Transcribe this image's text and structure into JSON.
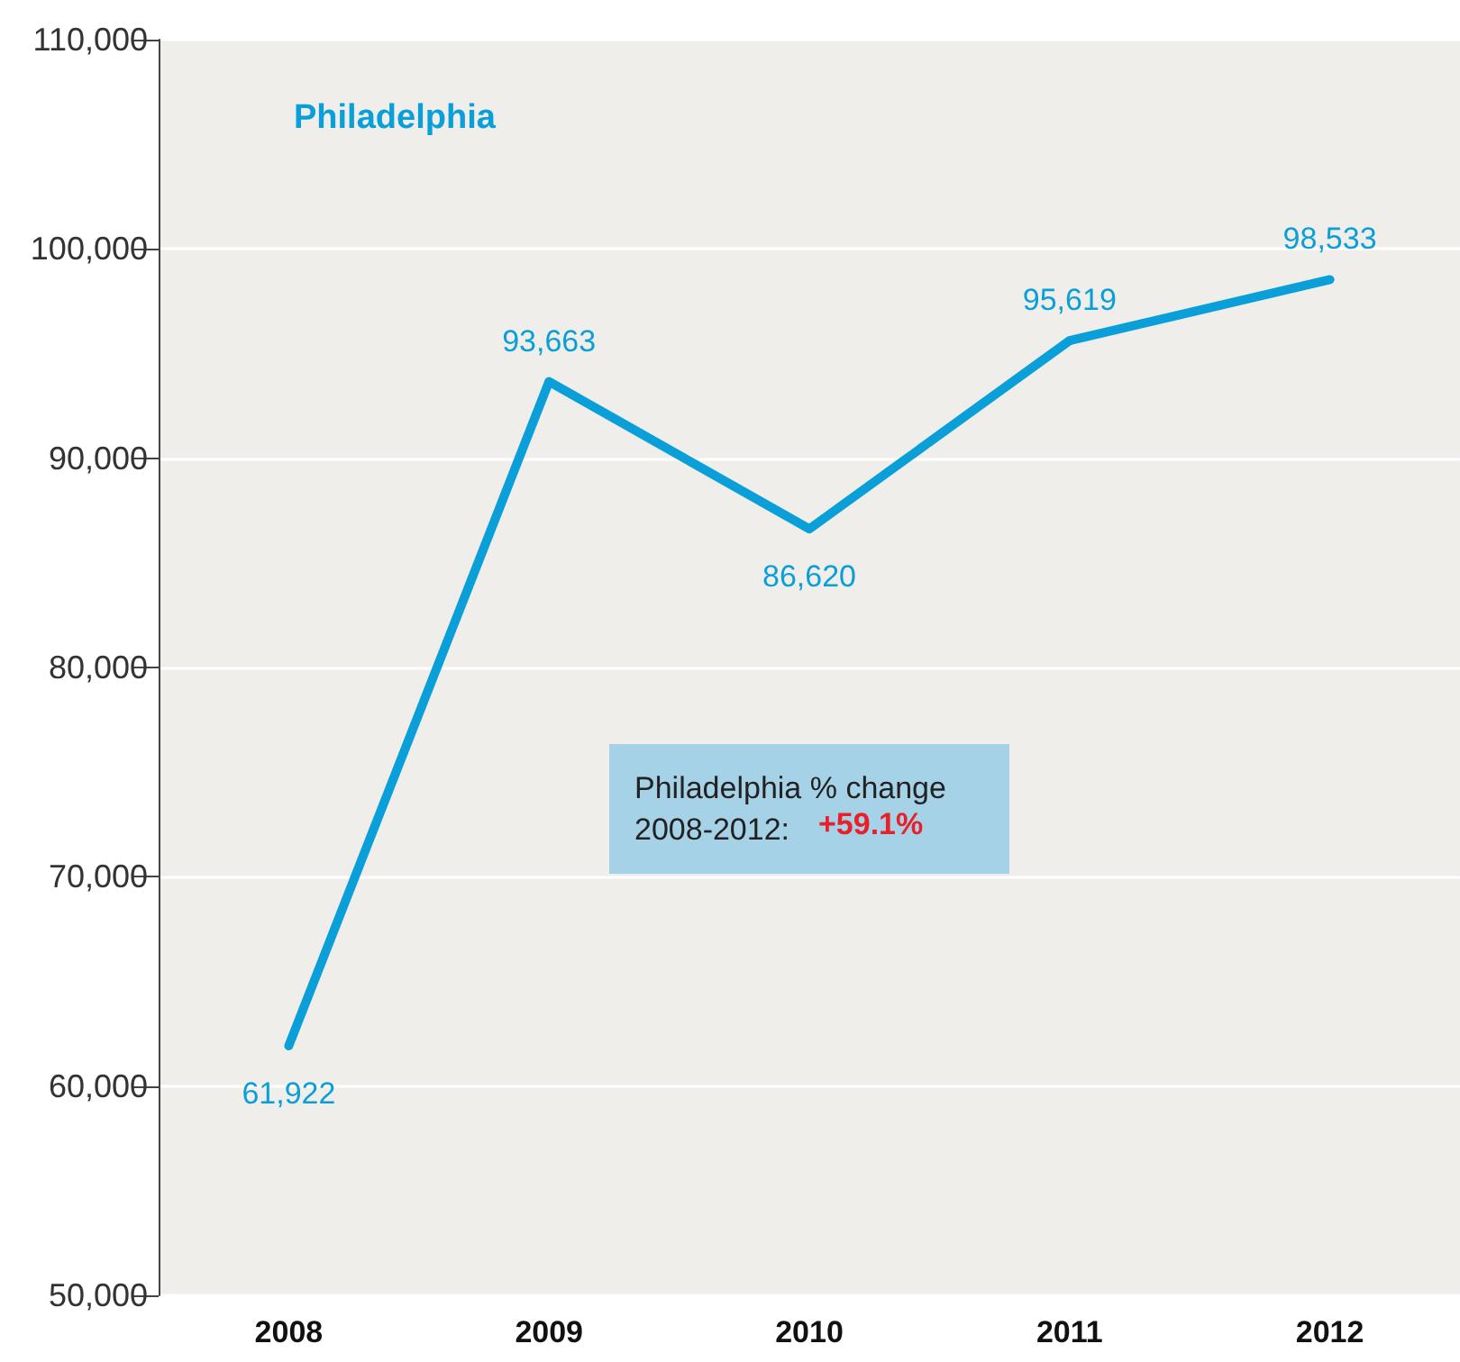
{
  "chart_data": {
    "type": "line",
    "title": "Philadelphia",
    "categories": [
      "2008",
      "2009",
      "2010",
      "2011",
      "2012"
    ],
    "series": [
      {
        "color": "#0a9fd8",
        "values": [
          61922,
          93663,
          86620,
          95619,
          98533
        ],
        "value_labels": [
          "61,922",
          "93,663",
          "86,620",
          "95,619",
          "98,533"
        ]
      }
    ],
    "ylim": [
      50000,
      110000
    ],
    "yticks": [
      {
        "value": 50000,
        "label": "50,000"
      },
      {
        "value": 60000,
        "label": "60,000"
      },
      {
        "value": 70000,
        "label": "70,000"
      },
      {
        "value": 80000,
        "label": "80,000"
      },
      {
        "value": 90000,
        "label": "90,000"
      },
      {
        "value": 100000,
        "label": "100,000"
      },
      {
        "value": 110000,
        "label": "110,000"
      }
    ],
    "grid": "y",
    "marker": "none",
    "line_style": "solid",
    "annotations": [
      "Philadelphia % change\n2008-2012:",
      "+59.1%"
    ]
  }
}
